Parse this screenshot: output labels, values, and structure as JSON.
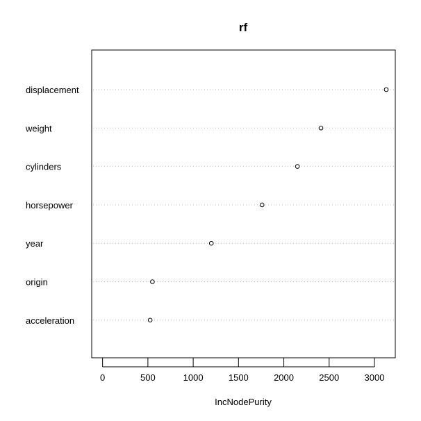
{
  "chart_data": {
    "type": "scatter",
    "title": "rf",
    "xlabel": "IncNodePurity",
    "ylabel": "",
    "xlim": [
      -120,
      3230
    ],
    "xticks": [
      0,
      500,
      1000,
      1500,
      2000,
      2500,
      3000
    ],
    "tick_labels": [
      "0",
      "500",
      "1000",
      "1500",
      "2000",
      "2500",
      "3000"
    ],
    "grid": "dotted horizontal",
    "categories": [
      "displacement",
      "weight",
      "cylinders",
      "horsepower",
      "year",
      "origin",
      "acceleration"
    ],
    "values": [
      3130,
      2410,
      2150,
      1760,
      1200,
      550,
      525
    ]
  }
}
